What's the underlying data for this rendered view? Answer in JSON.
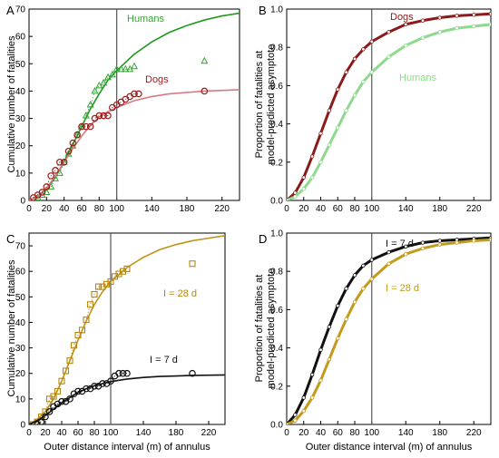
{
  "chart_data": [
    {
      "panel_label": "A",
      "type": "scatter",
      "xlabel": "",
      "ylabel": "Cumulative number of fatalities",
      "xlim": [
        0,
        240
      ],
      "ylim": [
        0,
        70
      ],
      "xticks": [
        0,
        20,
        40,
        60,
        80,
        100,
        140,
        180,
        220
      ],
      "yticks": [
        0,
        10,
        20,
        30,
        40,
        50,
        60,
        70
      ],
      "vline_x": 100,
      "series": [
        {
          "name": "Humans",
          "color": "#33a532",
          "marker": "triangle",
          "fit": "logistic",
          "fit_style": "solid",
          "fit_color": "#1e9a1e",
          "points": [
            [
              5,
              0
            ],
            [
              10,
              1
            ],
            [
              15,
              2
            ],
            [
              20,
              3
            ],
            [
              25,
              5
            ],
            [
              30,
              8
            ],
            [
              35,
              10
            ],
            [
              40,
              14
            ],
            [
              45,
              17
            ],
            [
              50,
              20
            ],
            [
              55,
              24
            ],
            [
              60,
              27
            ],
            [
              65,
              31
            ],
            [
              70,
              35
            ],
            [
              75,
              40
            ],
            [
              80,
              42
            ],
            [
              85,
              43
            ],
            [
              90,
              45
            ],
            [
              95,
              46
            ],
            [
              100,
              48
            ],
            [
              105,
              48
            ],
            [
              110,
              48
            ],
            [
              115,
              48
            ],
            [
              120,
              49
            ],
            [
              200,
              51
            ]
          ],
          "curve_points": [
            [
              0,
              0
            ],
            [
              10,
              1.5
            ],
            [
              20,
              4
            ],
            [
              30,
              8.5
            ],
            [
              40,
              14
            ],
            [
              50,
              20.5
            ],
            [
              60,
              27
            ],
            [
              70,
              33.5
            ],
            [
              80,
              39
            ],
            [
              90,
              44
            ],
            [
              100,
              47.5
            ],
            [
              120,
              53.5
            ],
            [
              140,
              58
            ],
            [
              160,
              61.5
            ],
            [
              180,
              64
            ],
            [
              200,
              66
            ],
            [
              220,
              67.5
            ],
            [
              240,
              68.5
            ]
          ]
        },
        {
          "name": "Dogs",
          "color": "#9b1b1b",
          "marker": "circle",
          "fit": "logistic",
          "fit_style": "solid",
          "fit_color": "#d77a82",
          "points": [
            [
              5,
              1
            ],
            [
              10,
              2
            ],
            [
              15,
              3
            ],
            [
              20,
              5
            ],
            [
              25,
              9
            ],
            [
              30,
              11
            ],
            [
              35,
              14
            ],
            [
              40,
              14
            ],
            [
              45,
              18
            ],
            [
              50,
              21
            ],
            [
              55,
              24
            ],
            [
              60,
              27
            ],
            [
              65,
              27
            ],
            [
              70,
              27
            ],
            [
              75,
              30
            ],
            [
              80,
              31
            ],
            [
              85,
              31
            ],
            [
              90,
              31
            ],
            [
              95,
              34
            ],
            [
              100,
              35
            ],
            [
              105,
              36
            ],
            [
              110,
              37
            ],
            [
              115,
              38
            ],
            [
              120,
              39
            ],
            [
              125,
              39
            ],
            [
              200,
              40
            ]
          ],
          "curve_points": [
            [
              0,
              0
            ],
            [
              10,
              1.5
            ],
            [
              20,
              4.5
            ],
            [
              30,
              9
            ],
            [
              40,
              14
            ],
            [
              50,
              19
            ],
            [
              60,
              23.5
            ],
            [
              70,
              27.5
            ],
            [
              80,
              30.5
            ],
            [
              90,
              32.5
            ],
            [
              100,
              34
            ],
            [
              120,
              36.5
            ],
            [
              140,
              38
            ],
            [
              160,
              39
            ],
            [
              180,
              39.5
            ],
            [
              200,
              40
            ],
            [
              240,
              40.5
            ]
          ]
        }
      ]
    },
    {
      "panel_label": "B",
      "type": "line",
      "xlabel": "",
      "ylabel": "Proportion of fatalities at model-predicted asymptote",
      "xlim": [
        0,
        240
      ],
      "ylim": [
        0,
        1.0
      ],
      "xticks": [
        0,
        20,
        40,
        60,
        80,
        100,
        140,
        180,
        220
      ],
      "yticks": [
        0.0,
        0.2,
        0.4,
        0.6,
        0.8,
        1.0
      ],
      "vline_x": 100,
      "series": [
        {
          "name": "Dogs",
          "color": "#8b1a1a",
          "points": [
            [
              0,
              0.0
            ],
            [
              10,
              0.04
            ],
            [
              20,
              0.12
            ],
            [
              30,
              0.23
            ],
            [
              40,
              0.35
            ],
            [
              50,
              0.47
            ],
            [
              60,
              0.58
            ],
            [
              70,
              0.67
            ],
            [
              80,
              0.74
            ],
            [
              90,
              0.79
            ],
            [
              100,
              0.83
            ],
            [
              120,
              0.88
            ],
            [
              140,
              0.92
            ],
            [
              160,
              0.94
            ],
            [
              180,
              0.955
            ],
            [
              200,
              0.965
            ],
            [
              220,
              0.97
            ],
            [
              240,
              0.975
            ]
          ]
        },
        {
          "name": "Humans",
          "color": "#8fd98c",
          "points": [
            [
              0,
              0.0
            ],
            [
              10,
              0.02
            ],
            [
              20,
              0.06
            ],
            [
              30,
              0.12
            ],
            [
              40,
              0.2
            ],
            [
              50,
              0.29
            ],
            [
              60,
              0.38
            ],
            [
              70,
              0.47
            ],
            [
              80,
              0.55
            ],
            [
              90,
              0.62
            ],
            [
              100,
              0.67
            ],
            [
              120,
              0.75
            ],
            [
              140,
              0.81
            ],
            [
              160,
              0.85
            ],
            [
              180,
              0.88
            ],
            [
              200,
              0.9
            ],
            [
              220,
              0.91
            ],
            [
              240,
              0.92
            ]
          ]
        }
      ]
    },
    {
      "panel_label": "C",
      "type": "scatter",
      "xlabel": "Outer distance interval (m) of annulus",
      "ylabel": "Cumulative number of fatalities",
      "xlim": [
        0,
        240
      ],
      "ylim": [
        0,
        75
      ],
      "xticks": [
        0,
        20,
        40,
        60,
        80,
        100,
        140,
        180,
        220
      ],
      "yticks": [
        0,
        10,
        20,
        30,
        40,
        50,
        60,
        70
      ],
      "vline_x": 100,
      "series": [
        {
          "name": "I = 28 d",
          "color": "#b8860b",
          "marker": "square",
          "fit": "logistic",
          "fit_style": "solid",
          "fit_color": "#c09318",
          "points": [
            [
              5,
              0
            ],
            [
              10,
              1
            ],
            [
              15,
              3
            ],
            [
              20,
              5
            ],
            [
              25,
              10
            ],
            [
              30,
              11
            ],
            [
              35,
              13
            ],
            [
              40,
              17
            ],
            [
              45,
              21
            ],
            [
              50,
              25
            ],
            [
              55,
              31
            ],
            [
              60,
              35
            ],
            [
              65,
              37
            ],
            [
              70,
              41
            ],
            [
              75,
              47
            ],
            [
              80,
              51
            ],
            [
              85,
              54
            ],
            [
              90,
              54
            ],
            [
              95,
              55
            ],
            [
              100,
              56
            ],
            [
              105,
              58
            ],
            [
              110,
              59
            ],
            [
              115,
              60
            ],
            [
              120,
              61
            ],
            [
              200,
              63
            ]
          ],
          "curve_points": [
            [
              0,
              0
            ],
            [
              10,
              2
            ],
            [
              20,
              5
            ],
            [
              30,
              10
            ],
            [
              40,
              17
            ],
            [
              50,
              25
            ],
            [
              60,
              33
            ],
            [
              70,
              40.5
            ],
            [
              80,
              47
            ],
            [
              90,
              52
            ],
            [
              100,
              56
            ],
            [
              120,
              61.5
            ],
            [
              140,
              65.5
            ],
            [
              160,
              68.5
            ],
            [
              180,
              70.5
            ],
            [
              200,
              72
            ],
            [
              220,
              73
            ],
            [
              240,
              74
            ]
          ]
        },
        {
          "name": "I = 7 d",
          "color": "#111111",
          "marker": "circle",
          "fit": "logistic",
          "fit_style": "solid",
          "fit_color": "#111111",
          "points": [
            [
              10,
              0
            ],
            [
              15,
              1
            ],
            [
              20,
              3
            ],
            [
              25,
              5
            ],
            [
              30,
              7
            ],
            [
              35,
              8
            ],
            [
              40,
              9
            ],
            [
              45,
              9
            ],
            [
              50,
              10
            ],
            [
              55,
              12
            ],
            [
              60,
              13
            ],
            [
              65,
              13
            ],
            [
              70,
              14
            ],
            [
              75,
              14
            ],
            [
              80,
              15
            ],
            [
              85,
              15
            ],
            [
              90,
              16
            ],
            [
              95,
              16
            ],
            [
              100,
              17
            ],
            [
              105,
              19
            ],
            [
              110,
              20
            ],
            [
              115,
              20
            ],
            [
              120,
              20
            ],
            [
              200,
              20
            ]
          ],
          "curve_points": [
            [
              0,
              0
            ],
            [
              10,
              1.5
            ],
            [
              20,
              3.5
            ],
            [
              30,
              6
            ],
            [
              40,
              8.5
            ],
            [
              50,
              10.5
            ],
            [
              60,
              12.5
            ],
            [
              70,
              14
            ],
            [
              80,
              15.2
            ],
            [
              90,
              16
            ],
            [
              100,
              16.8
            ],
            [
              120,
              17.8
            ],
            [
              140,
              18.4
            ],
            [
              160,
              18.8
            ],
            [
              180,
              19
            ],
            [
              200,
              19.2
            ],
            [
              240,
              19.4
            ]
          ]
        }
      ]
    },
    {
      "panel_label": "D",
      "type": "line",
      "xlabel": "Outer distance interval (m) of annulus",
      "ylabel": "Proportion of fatalities at model-predicted asymptote",
      "xlim": [
        0,
        240
      ],
      "ylim": [
        0,
        1.0
      ],
      "xticks": [
        0,
        20,
        40,
        60,
        80,
        100,
        140,
        180,
        220
      ],
      "yticks": [
        0.0,
        0.2,
        0.4,
        0.6,
        0.8,
        1.0
      ],
      "vline_x": 100,
      "series": [
        {
          "name": "I = 7 d",
          "color": "#111111",
          "points": [
            [
              0,
              0.0
            ],
            [
              10,
              0.05
            ],
            [
              20,
              0.14
            ],
            [
              30,
              0.26
            ],
            [
              40,
              0.39
            ],
            [
              50,
              0.51
            ],
            [
              60,
              0.62
            ],
            [
              70,
              0.71
            ],
            [
              80,
              0.78
            ],
            [
              90,
              0.83
            ],
            [
              100,
              0.86
            ],
            [
              120,
              0.9
            ],
            [
              140,
              0.93
            ],
            [
              160,
              0.95
            ],
            [
              180,
              0.96
            ],
            [
              200,
              0.965
            ],
            [
              220,
              0.97
            ],
            [
              240,
              0.975
            ]
          ]
        },
        {
          "name": "I = 28 d",
          "color": "#c49a1a",
          "points": [
            [
              0,
              0.0
            ],
            [
              10,
              0.02
            ],
            [
              20,
              0.07
            ],
            [
              30,
              0.14
            ],
            [
              40,
              0.23
            ],
            [
              50,
              0.34
            ],
            [
              60,
              0.45
            ],
            [
              70,
              0.55
            ],
            [
              80,
              0.64
            ],
            [
              90,
              0.71
            ],
            [
              100,
              0.76
            ],
            [
              120,
              0.84
            ],
            [
              140,
              0.89
            ],
            [
              160,
              0.92
            ],
            [
              180,
              0.94
            ],
            [
              200,
              0.95
            ],
            [
              220,
              0.96
            ],
            [
              240,
              0.965
            ]
          ]
        }
      ]
    }
  ]
}
